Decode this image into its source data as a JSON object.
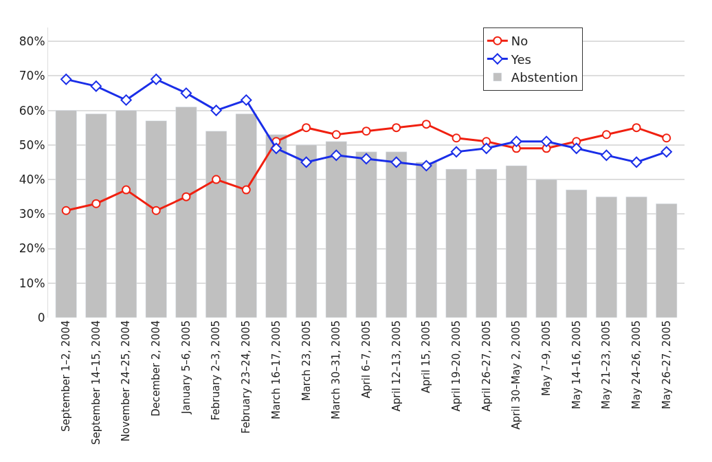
{
  "chart_data": {
    "type": "bar",
    "categories": [
      "September 1–2, 2004",
      "September 14–15, 2004",
      "November 24–25, 2004",
      "December 2, 2004",
      "January 5–6, 2005",
      "February 2–3, 2005",
      "February 23–24, 2005",
      "March 16–17, 2005",
      "March 23, 2005",
      "March 30–31, 2005",
      "April 6–7, 2005",
      "April 12–13, 2005",
      "April 15, 2005",
      "April 19–20, 2005",
      "April 26–27, 2005",
      "April 30–May 2, 2005",
      "May 7–9, 2005",
      "May 14–16, 2005",
      "May 21–23, 2005",
      "May 24–26, 2005",
      "May 26–27, 2005"
    ],
    "series": [
      {
        "name": "No",
        "type": "line",
        "marker": "circle",
        "color": "#f02010",
        "values": [
          31,
          33,
          37,
          31,
          35,
          40,
          37,
          51,
          55,
          53,
          54,
          55,
          56,
          52,
          51,
          49,
          49,
          51,
          53,
          55,
          52
        ]
      },
      {
        "name": "Yes",
        "type": "line",
        "marker": "diamond",
        "color": "#1a2ee8",
        "values": [
          69,
          67,
          63,
          69,
          65,
          60,
          63,
          49,
          45,
          47,
          46,
          45,
          44,
          48,
          49,
          51,
          51,
          49,
          47,
          45,
          48
        ]
      },
      {
        "name": "Abstention",
        "color": "#c0c0c0",
        "values": [
          60,
          59,
          60,
          57,
          61,
          54,
          59,
          53,
          50,
          51,
          48,
          48,
          45,
          43,
          43,
          44,
          40,
          37,
          35,
          35,
          33
        ]
      }
    ],
    "ylim": [
      0,
      84
    ],
    "yticks": [
      {
        "value": 0,
        "label": "0"
      },
      {
        "value": 10,
        "label": "10%"
      },
      {
        "value": 20,
        "label": "20%"
      },
      {
        "value": 30,
        "label": "30%"
      },
      {
        "value": 40,
        "label": "40%"
      },
      {
        "value": 50,
        "label": "50%"
      },
      {
        "value": 60,
        "label": "60%"
      },
      {
        "value": 70,
        "label": "70%"
      },
      {
        "value": 80,
        "label": "80%"
      }
    ],
    "grid": "y",
    "legend": "top right"
  }
}
